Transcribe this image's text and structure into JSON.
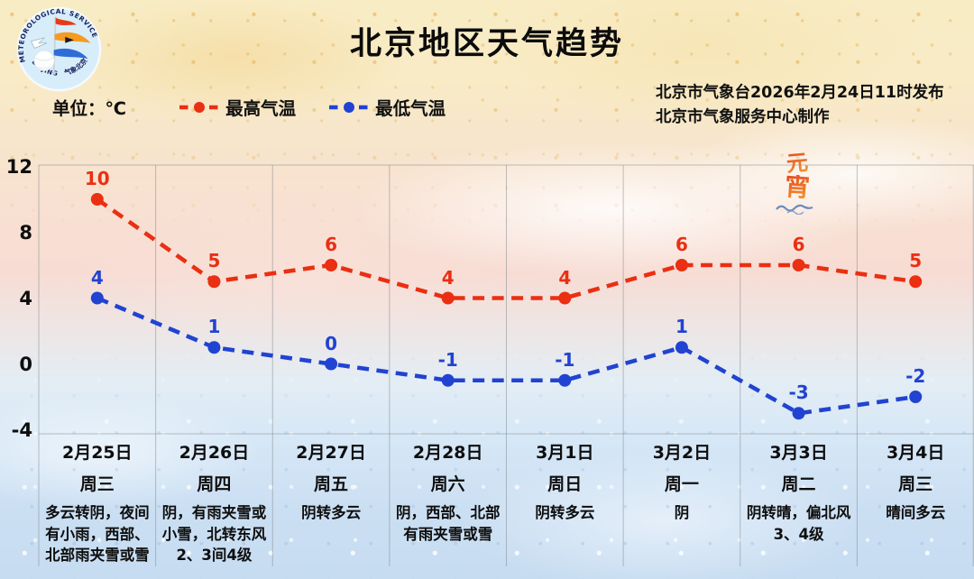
{
  "header": {
    "title": "北京地区天气趋势",
    "issued_line1": "北京市气象台2026年2月24日11时发布",
    "issued_line2": "北京市气象服务中心制作",
    "logo_text_top": "METEOROLOGICAL SERVICE",
    "logo_text_left": "BEIJING",
    "logo_text_right": "气象北京"
  },
  "legend": {
    "unit_label": "单位：℃",
    "items": [
      {
        "label": "最高气温",
        "color": "#ea2f12"
      },
      {
        "label": "最低气温",
        "color": "#2143d1"
      }
    ]
  },
  "festival_badge": {
    "char_top": "元",
    "char_bottom": "宵"
  },
  "chart_data": {
    "type": "line",
    "title": "北京地区天气趋势",
    "ylabel": "℃",
    "ylim": [
      -4,
      12
    ],
    "yticks": [
      12,
      8,
      4,
      0,
      -4
    ],
    "grid": "vertical day-column separators plus top and bottom border; no horizontal gridlines",
    "legend_position": "top-left",
    "line_style": "dashed lines with round markers and value labels above points",
    "categories": [
      "2月25日",
      "2月26日",
      "2月27日",
      "2月28日",
      "3月1日",
      "3月2日",
      "3月3日",
      "3月4日"
    ],
    "weekdays": [
      "周三",
      "周四",
      "周五",
      "周六",
      "周日",
      "周一",
      "周二",
      "周三"
    ],
    "descriptions": [
      "多云转阴，夜间\n有小雨，西部、\n北部雨夹雪或雪",
      "阴，有雨夹雪或\n小雪，北转东风\n2、3间4级",
      "阴转多云",
      "阴，西部、北部\n有雨夹雪或雪",
      "阴转多云",
      "阴",
      "阴转晴，偏北风\n3、4级",
      "晴间多云"
    ],
    "series": [
      {
        "name": "最高气温",
        "color": "#ea2f12",
        "values": [
          10,
          5,
          6,
          4,
          4,
          6,
          6,
          5
        ]
      },
      {
        "name": "最低气温",
        "color": "#2143d1",
        "values": [
          4,
          1,
          0,
          -1,
          -1,
          1,
          -3,
          -2
        ]
      }
    ]
  }
}
